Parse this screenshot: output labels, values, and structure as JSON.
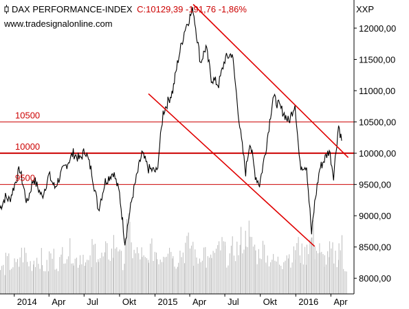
{
  "header": {
    "title": "DAX PERFORMANCE-INDEX",
    "quote": "C:10129,39 -191,76 -1,86%",
    "source": "www.tradesignalonline.com",
    "symbol": "XXP"
  },
  "colors": {
    "price": "#000000",
    "levels": "#cc0000",
    "trend": "#e00000",
    "volume": "#bbbbbb",
    "quote": "#cc0000"
  },
  "icon": "candlestick-icon",
  "chart_data": {
    "type": "line",
    "title": "DAX PERFORMANCE-INDEX",
    "xlabel": "",
    "ylabel": "",
    "ylim": [
      7750,
      12450
    ],
    "x_ticks": [
      "2014",
      "Apr",
      "Jul",
      "Okt",
      "2015",
      "Apr",
      "Jul",
      "Okt",
      "2016",
      "Apr"
    ],
    "y_ticks": [
      "12000,00",
      "11500,00",
      "11000,00",
      "10500,00",
      "10000,00",
      "9500,00",
      "9000,00",
      "8500,00",
      "8000,00"
    ],
    "y_tick_values": [
      12000,
      11500,
      11000,
      10500,
      10000,
      9500,
      9000,
      8500,
      8000
    ],
    "x_range": [
      "2013-11-25",
      "2016-05-31"
    ],
    "series": [
      {
        "type": "line",
        "x": [
          "2013-11-25",
          "2013-12-09",
          "2013-12-20",
          "2014-01-15",
          "2014-02-03",
          "2014-02-20",
          "2014-03-14",
          "2014-04-01",
          "2014-04-16",
          "2014-05-05",
          "2014-06-03",
          "2014-06-20",
          "2014-07-04",
          "2014-07-21",
          "2014-08-07",
          "2014-08-25",
          "2014-09-15",
          "2014-10-01",
          "2014-10-15",
          "2014-11-03",
          "2014-11-28",
          "2014-12-15",
          "2015-01-06",
          "2015-01-22",
          "2015-02-16",
          "2015-03-02",
          "2015-03-20",
          "2015-04-10",
          "2015-04-29",
          "2015-05-13",
          "2015-05-27",
          "2015-06-15",
          "2015-07-01",
          "2015-07-20",
          "2015-08-11",
          "2015-08-24",
          "2015-09-04",
          "2015-09-18",
          "2015-09-29",
          "2015-10-15",
          "2015-11-03",
          "2015-11-30",
          "2015-12-14",
          "2015-12-30",
          "2016-01-12",
          "2016-01-29",
          "2016-02-11",
          "2016-02-19",
          "2016-03-03",
          "2016-03-15",
          "2016-03-28",
          "2016-04-08",
          "2016-04-21",
          "2016-04-29"
        ],
        "values": [
          9120,
          9300,
          9250,
          9750,
          9200,
          9600,
          9300,
          9650,
          9450,
          9700,
          10000,
          9900,
          10050,
          9700,
          9100,
          9550,
          9700,
          9350,
          8580,
          9300,
          10000,
          9750,
          9700,
          10650,
          11000,
          11500,
          12000,
          12300,
          11450,
          11700,
          11200,
          11100,
          11500,
          11600,
          10300,
          9700,
          10200,
          9650,
          9500,
          10050,
          10900,
          10650,
          10500,
          10800,
          9800,
          9800,
          8700,
          9200,
          9750,
          9900,
          10050,
          9650,
          10450,
          10200
        ]
      },
      {
        "type": "bar",
        "name": "volume",
        "values": [
          14,
          18,
          16,
          22,
          17,
          20,
          15,
          21,
          18,
          24,
          19,
          22,
          17,
          25,
          20,
          23,
          28,
          19,
          35,
          22,
          18,
          24,
          21,
          26,
          19,
          23,
          27,
          20,
          24,
          18,
          22,
          26,
          21,
          25,
          30,
          34,
          27,
          22,
          25,
          20,
          18,
          23,
          21,
          26,
          22,
          29,
          33,
          24,
          20,
          19,
          23,
          21,
          27,
          16
        ]
      }
    ],
    "reference_lines": [
      {
        "label": "10500",
        "value": 10500
      },
      {
        "label": "10000",
        "value": 10000
      },
      {
        "label": "9500",
        "value": 9500
      }
    ],
    "trendlines": [
      {
        "from": [
          "2015-04-10",
          12380
        ],
        "to": [
          "2016-05-16",
          9930
        ]
      },
      {
        "from": [
          "2014-12-15",
          10950
        ],
        "to": [
          "2016-02-19",
          8510
        ]
      }
    ],
    "grid": false,
    "legend": "none"
  }
}
